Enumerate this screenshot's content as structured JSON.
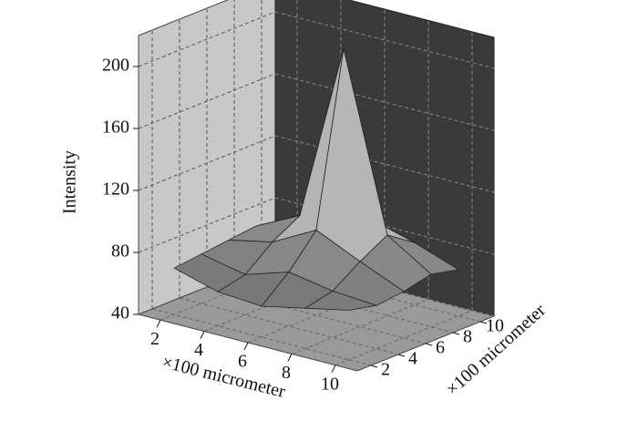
{
  "chart_data": {
    "type": "surface",
    "zlabel": "Intensity",
    "xlabel": "×100 micrometer",
    "ylabel": "×100 micrometer",
    "x": [
      2,
      4,
      6,
      8,
      10
    ],
    "y": [
      2,
      4,
      6,
      8,
      10
    ],
    "z": [
      [
        70,
        62,
        60,
        66,
        72
      ],
      [
        72,
        66,
        75,
        70,
        68
      ],
      [
        74,
        80,
        95,
        82,
        70
      ],
      [
        76,
        90,
        205,
        92,
        74
      ],
      [
        72,
        78,
        88,
        80,
        70
      ]
    ],
    "xlim": [
      1,
      11
    ],
    "ylim": [
      1,
      11
    ],
    "zlim": [
      40,
      220
    ],
    "xticks": [
      2,
      4,
      6,
      8,
      10
    ],
    "yticks": [
      2,
      4,
      6,
      8,
      10
    ],
    "zticks": [
      40,
      80,
      120,
      160,
      200
    ],
    "grid": true
  }
}
